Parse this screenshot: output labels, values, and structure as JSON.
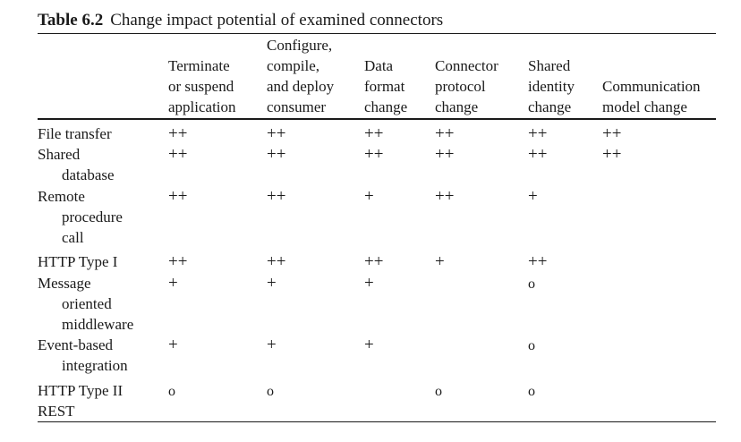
{
  "caption": {
    "number": "Table 6.2",
    "title": "Change impact potential of examined connectors"
  },
  "columns": [
    {
      "lines": [
        "Terminate",
        "or suspend",
        "application"
      ]
    },
    {
      "lines": [
        "Configure,",
        "compile,",
        "and deploy",
        "consumer"
      ]
    },
    {
      "lines": [
        "Data",
        "format",
        "change"
      ]
    },
    {
      "lines": [
        "Connector",
        "protocol",
        "change"
      ]
    },
    {
      "lines": [
        "Shared",
        "identity",
        "change"
      ]
    },
    {
      "lines": [
        "Communication",
        "model change"
      ]
    }
  ],
  "rows": [
    {
      "label": [
        "File transfer"
      ],
      "values": [
        "++",
        "++",
        "++",
        "++",
        "++",
        "++"
      ]
    },
    {
      "label": [
        "Shared",
        "database"
      ],
      "values": [
        "++",
        "++",
        "++",
        "++",
        "++",
        "++"
      ]
    },
    {
      "label": [
        "Remote",
        "procedure",
        "call"
      ],
      "values": [
        "++",
        "++",
        "+",
        "++",
        "+",
        ""
      ]
    },
    {
      "label": [
        "HTTP Type I"
      ],
      "values": [
        "++",
        "++",
        "++",
        "+",
        "++",
        ""
      ]
    },
    {
      "label": [
        "Message",
        "oriented",
        "middleware"
      ],
      "values": [
        "+",
        "+",
        "+",
        "",
        "o",
        ""
      ]
    },
    {
      "label": [
        "Event-based",
        "integration"
      ],
      "values": [
        "+",
        "+",
        "+",
        "",
        "o",
        ""
      ]
    },
    {
      "label": [
        "HTTP Type II",
        "REST"
      ],
      "values": [
        "o",
        "o",
        "",
        "o",
        "o",
        ""
      ]
    }
  ]
}
